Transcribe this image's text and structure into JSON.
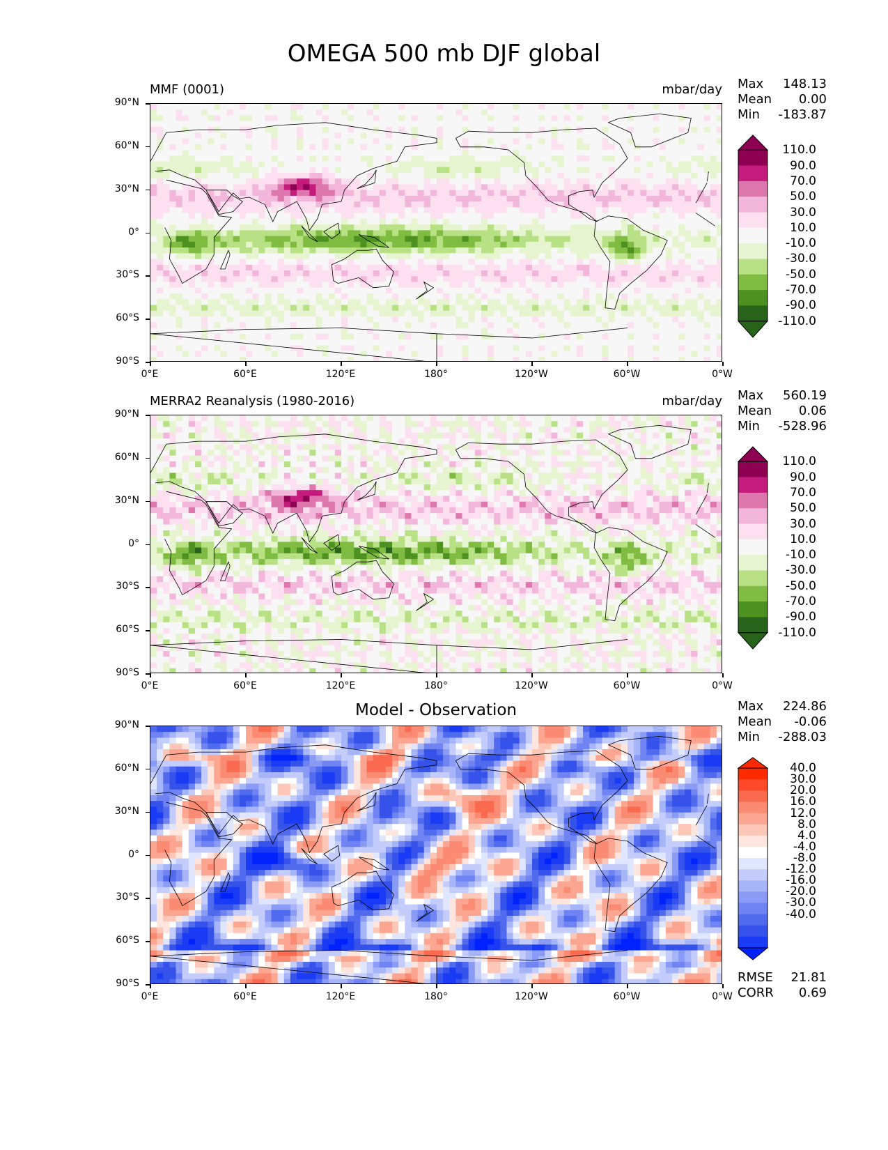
{
  "figure": {
    "title": "OMEGA 500 mb DJF global"
  },
  "axes": {
    "yticks": [
      "90°N",
      "60°N",
      "30°N",
      "0°",
      "30°S",
      "60°S",
      "90°S"
    ],
    "xticks": [
      "0°E",
      "60°E",
      "120°E",
      "180°",
      "120°W",
      "60°W",
      "0°W"
    ]
  },
  "panels": [
    {
      "left_title": "MMF (0001)",
      "right_title": "mbar/day",
      "center_title": "",
      "stats": [
        {
          "label": "Max",
          "value": "148.13"
        },
        {
          "label": "Mean",
          "value": "0.00"
        },
        {
          "label": "Min",
          "value": "-183.87"
        }
      ],
      "bottom_stats": [],
      "colorbar": {
        "colors": [
          "#8e0152",
          "#c51b7d",
          "#de77ae",
          "#f1b6da",
          "#fde0ef",
          "#f7f7f7",
          "#e6f5d0",
          "#b8e186",
          "#7fbc41",
          "#4d9221",
          "#276419"
        ],
        "extend_top": "#8e0152",
        "extend_bottom": "#276419",
        "labels": [
          "110.0",
          "90.0",
          "70.0",
          "50.0",
          "30.0",
          "10.0",
          "-10.0",
          "-30.0",
          "-50.0",
          "-70.0",
          "-90.0",
          "-110.0"
        ]
      },
      "palette": "piyg"
    },
    {
      "left_title": "MERRA2 Reanalysis (1980-2016)",
      "right_title": "mbar/day",
      "center_title": "",
      "stats": [
        {
          "label": "Max",
          "value": "560.19"
        },
        {
          "label": "Mean",
          "value": "0.06"
        },
        {
          "label": "Min",
          "value": "-528.96"
        }
      ],
      "bottom_stats": [],
      "colorbar": {
        "colors": [
          "#8e0152",
          "#c51b7d",
          "#de77ae",
          "#f1b6da",
          "#fde0ef",
          "#f7f7f7",
          "#e6f5d0",
          "#b8e186",
          "#7fbc41",
          "#4d9221",
          "#276419"
        ],
        "extend_top": "#8e0152",
        "extend_bottom": "#276419",
        "labels": [
          "110.0",
          "90.0",
          "70.0",
          "50.0",
          "30.0",
          "10.0",
          "-10.0",
          "-30.0",
          "-50.0",
          "-70.0",
          "-90.0",
          "-110.0"
        ]
      },
      "palette": "piyg"
    },
    {
      "left_title": "",
      "right_title": "",
      "center_title": "Model - Observation",
      "stats": [
        {
          "label": "Max",
          "value": "224.86"
        },
        {
          "label": "Mean",
          "value": "-0.06"
        },
        {
          "label": "Min",
          "value": "-288.03"
        }
      ],
      "bottom_stats": [
        {
          "label": "RMSE",
          "value": "21.81"
        },
        {
          "label": "CORR",
          "value": "0.69"
        }
      ],
      "colorbar": {
        "colors": [
          "#ff2a00",
          "#ff4a2a",
          "#f96a4e",
          "#fb8a72",
          "#fca590",
          "#fdc7b8",
          "#fee6df",
          "#ffffff",
          "#dfe6fd",
          "#c3ccfb",
          "#a6b4f8",
          "#8a9bf5",
          "#6f83f2",
          "#516bee",
          "#3552ea",
          "#1a3bf5"
        ],
        "extend_top": "#ff2a00",
        "extend_bottom": "#0022ff",
        "labels": [
          "40.0",
          "30.0",
          "20.0",
          "16.0",
          "12.0",
          "8.0",
          "4.0",
          "-4.0",
          "-8.0",
          "-12.0",
          "-16.0",
          "-20.0",
          "-30.0",
          "-40.0"
        ]
      },
      "palette": "bwr"
    }
  ],
  "chart_data": [
    {
      "type": "heatmap",
      "title": "MMF (0001)",
      "units": "mbar/day",
      "field": "OMEGA 500 mb DJF",
      "x_range_deg": [
        0,
        360
      ],
      "y_range_deg": [
        -90,
        90
      ],
      "levels": [
        -110,
        -90,
        -70,
        -50,
        -30,
        -10,
        10,
        30,
        50,
        70,
        90,
        110
      ],
      "max": 148.13,
      "mean": 0.0,
      "min": -183.87
    },
    {
      "type": "heatmap",
      "title": "MERRA2 Reanalysis (1980-2016)",
      "units": "mbar/day",
      "field": "OMEGA 500 mb DJF",
      "x_range_deg": [
        0,
        360
      ],
      "y_range_deg": [
        -90,
        90
      ],
      "levels": [
        -110,
        -90,
        -70,
        -50,
        -30,
        -10,
        10,
        30,
        50,
        70,
        90,
        110
      ],
      "max": 560.19,
      "mean": 0.06,
      "min": -528.96
    },
    {
      "type": "heatmap",
      "title": "Model - Observation",
      "units": "mbar/day",
      "x_range_deg": [
        0,
        360
      ],
      "y_range_deg": [
        -90,
        90
      ],
      "levels": [
        -40,
        -30,
        -20,
        -16,
        -12,
        -8,
        -4,
        4,
        8,
        12,
        16,
        20,
        30,
        40
      ],
      "max": 224.86,
      "mean": -0.06,
      "min": -288.03,
      "rmse": 21.81,
      "corr": 0.69
    }
  ]
}
